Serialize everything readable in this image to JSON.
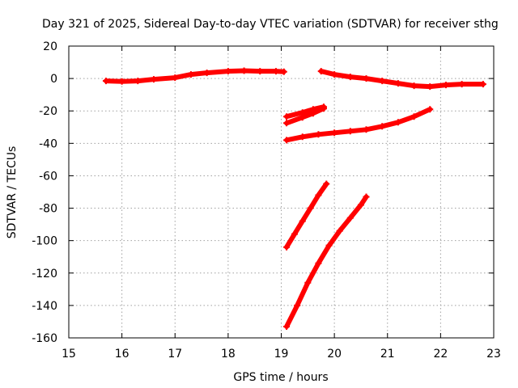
{
  "chart_data": {
    "type": "scatter",
    "title": "Day 321 of 2025, Sidereal Day-to-day VTEC variation (SDTVAR) for receiver sthg",
    "xlabel": "GPS time / hours",
    "ylabel": "SDTVAR / TECUs",
    "xlim": [
      15,
      23
    ],
    "ylim": [
      -160,
      20
    ],
    "xticks": [
      15,
      16,
      17,
      18,
      19,
      20,
      21,
      22,
      23
    ],
    "yticks": [
      -160,
      -140,
      -120,
      -100,
      -80,
      -60,
      -40,
      -20,
      0,
      20
    ],
    "grid": true,
    "legend": "none",
    "color": "#ff0000",
    "series": [
      {
        "values": [
          [
            15.7,
            -1.5
          ],
          [
            16.0,
            -1.8
          ],
          [
            16.3,
            -1.5
          ],
          [
            16.6,
            -0.5
          ],
          [
            17.0,
            0.5
          ],
          [
            17.3,
            2.5
          ],
          [
            17.6,
            3.5
          ],
          [
            18.0,
            4.5
          ],
          [
            18.3,
            4.8
          ],
          [
            18.6,
            4.5
          ],
          [
            18.9,
            4.5
          ],
          [
            19.05,
            4.2
          ]
        ]
      },
      {
        "values": [
          [
            19.75,
            4.5
          ],
          [
            20.0,
            2.5
          ],
          [
            20.3,
            1.0
          ],
          [
            20.6,
            0.0
          ],
          [
            20.9,
            -1.5
          ],
          [
            21.2,
            -3.0
          ],
          [
            21.5,
            -4.5
          ],
          [
            21.8,
            -5.0
          ],
          [
            22.1,
            -4.0
          ],
          [
            22.4,
            -3.5
          ],
          [
            22.8,
            -3.5
          ]
        ]
      },
      {
        "values": [
          [
            19.1,
            -23.5
          ],
          [
            19.4,
            -21.0
          ],
          [
            19.6,
            -19.0
          ],
          [
            19.8,
            -17.5
          ]
        ]
      },
      {
        "values": [
          [
            19.1,
            -27.5
          ],
          [
            19.4,
            -24.0
          ],
          [
            19.6,
            -21.5
          ],
          [
            19.8,
            -18.5
          ]
        ]
      },
      {
        "values": [
          [
            19.1,
            -38.0
          ],
          [
            19.4,
            -36.0
          ],
          [
            19.7,
            -34.5
          ],
          [
            20.0,
            -33.5
          ],
          [
            20.3,
            -32.5
          ],
          [
            20.6,
            -31.5
          ],
          [
            20.9,
            -29.5
          ],
          [
            21.2,
            -27.0
          ],
          [
            21.5,
            -23.5
          ],
          [
            21.8,
            -19.0
          ]
        ]
      },
      {
        "values": [
          [
            19.1,
            -104
          ],
          [
            19.25,
            -96
          ],
          [
            19.4,
            -88
          ],
          [
            19.55,
            -80
          ],
          [
            19.7,
            -72
          ],
          [
            19.85,
            -65
          ]
        ]
      },
      {
        "values": [
          [
            19.1,
            -153
          ],
          [
            19.3,
            -140
          ],
          [
            19.5,
            -126
          ],
          [
            19.7,
            -114
          ],
          [
            19.9,
            -103
          ],
          [
            20.1,
            -94
          ],
          [
            20.3,
            -86
          ],
          [
            20.5,
            -78
          ],
          [
            20.6,
            -73
          ]
        ]
      }
    ]
  }
}
